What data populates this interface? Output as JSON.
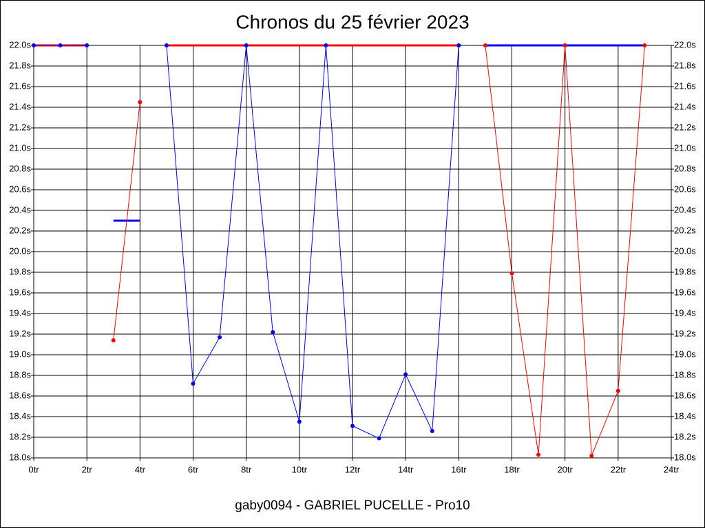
{
  "chart_data": {
    "type": "line",
    "title": "Chronos du 25 février 2023",
    "footer": "gaby0094 - GABRIEL PUCELLE - Pro10",
    "x": [
      0,
      1,
      2,
      3,
      4,
      5,
      6,
      7,
      8,
      9,
      10,
      11,
      12,
      13,
      14,
      15,
      16,
      17,
      18,
      19,
      20,
      21,
      22,
      23
    ],
    "xlim": [
      0,
      24
    ],
    "xticks": [
      {
        "value": 0,
        "label": "0tr"
      },
      {
        "value": 2,
        "label": "2tr"
      },
      {
        "value": 4,
        "label": "4tr"
      },
      {
        "value": 6,
        "label": "6tr"
      },
      {
        "value": 8,
        "label": "8tr"
      },
      {
        "value": 10,
        "label": "10tr"
      },
      {
        "value": 12,
        "label": "12tr"
      },
      {
        "value": 14,
        "label": "14tr"
      },
      {
        "value": 16,
        "label": "16tr"
      },
      {
        "value": 18,
        "label": "18tr"
      },
      {
        "value": 20,
        "label": "20tr"
      },
      {
        "value": 22,
        "label": "22tr"
      },
      {
        "value": 24,
        "label": "24tr"
      }
    ],
    "ylim": [
      18,
      22
    ],
    "yticks": [
      {
        "value": 18.0,
        "label": "18.0s"
      },
      {
        "value": 18.2,
        "label": "18.2s"
      },
      {
        "value": 18.4,
        "label": "18.4s"
      },
      {
        "value": 18.6,
        "label": "18.6s"
      },
      {
        "value": 18.8,
        "label": "18.8s"
      },
      {
        "value": 19.0,
        "label": "19.0s"
      },
      {
        "value": 19.2,
        "label": "19.2s"
      },
      {
        "value": 19.4,
        "label": "19.4s"
      },
      {
        "value": 19.6,
        "label": "19.6s"
      },
      {
        "value": 19.8,
        "label": "19.8s"
      },
      {
        "value": 20.0,
        "label": "20.0s"
      },
      {
        "value": 20.2,
        "label": "20.2s"
      },
      {
        "value": 20.4,
        "label": "20.4s"
      },
      {
        "value": 20.6,
        "label": "20.6s"
      },
      {
        "value": 20.8,
        "label": "20.8s"
      },
      {
        "value": 21.0,
        "label": "21.0s"
      },
      {
        "value": 21.2,
        "label": "21.2s"
      },
      {
        "value": 21.4,
        "label": "21.4s"
      },
      {
        "value": 21.6,
        "label": "21.6s"
      },
      {
        "value": 21.8,
        "label": "21.8s"
      },
      {
        "value": 22.0,
        "label": "22.0s"
      }
    ],
    "grid": true,
    "series": [
      {
        "color": "#ff0000",
        "width": 3,
        "markers": false,
        "values": [
          22,
          22,
          22,
          null,
          null,
          22,
          22,
          22,
          22,
          22,
          22,
          22,
          22,
          22,
          22,
          22,
          22,
          null,
          null,
          null,
          null,
          null,
          null,
          null
        ]
      },
      {
        "color": "#0000ff",
        "width": 3,
        "markers": false,
        "values": [
          null,
          null,
          null,
          20.3,
          20.3,
          null,
          null,
          null,
          null,
          null,
          null,
          null,
          null,
          null,
          null,
          null,
          null,
          22,
          22,
          22,
          22,
          22,
          22,
          22
        ]
      },
      {
        "color": "#ff0000",
        "width": 1,
        "markers": true,
        "values": [
          null,
          null,
          null,
          19.14,
          21.45,
          null,
          null,
          null,
          null,
          null,
          null,
          null,
          null,
          null,
          null,
          null,
          null,
          22,
          19.79,
          18.03,
          22,
          18.02,
          18.65,
          22
        ]
      },
      {
        "color": "#0000ff",
        "width": 1,
        "markers": true,
        "values": [
          22,
          22,
          22,
          null,
          null,
          22,
          18.72,
          19.17,
          22,
          19.22,
          18.35,
          22,
          18.31,
          18.19,
          18.81,
          18.26,
          22,
          null,
          null,
          null,
          null,
          null,
          null,
          null
        ]
      }
    ]
  }
}
